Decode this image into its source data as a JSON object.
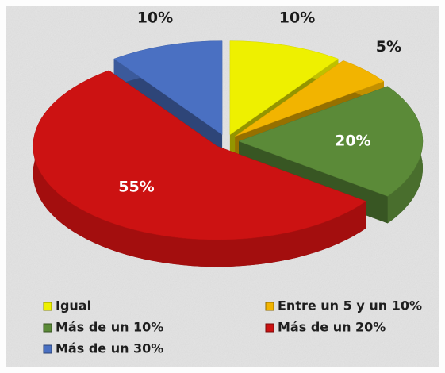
{
  "chart_data": {
    "type": "pie",
    "categories": [
      "Igual",
      "Entre un 5 y un 10%",
      "Más de un 10%",
      "Más de un 20%",
      "Más de un 30%"
    ],
    "values": [
      10,
      5,
      20,
      55,
      10
    ],
    "value_labels": [
      "10%",
      "5%",
      "20%",
      "55%",
      "10%"
    ],
    "colors": [
      "#eef000",
      "#f2b400",
      "#5b8a38",
      "#cc1212",
      "#4a70c2"
    ],
    "legend": "bottom"
  }
}
